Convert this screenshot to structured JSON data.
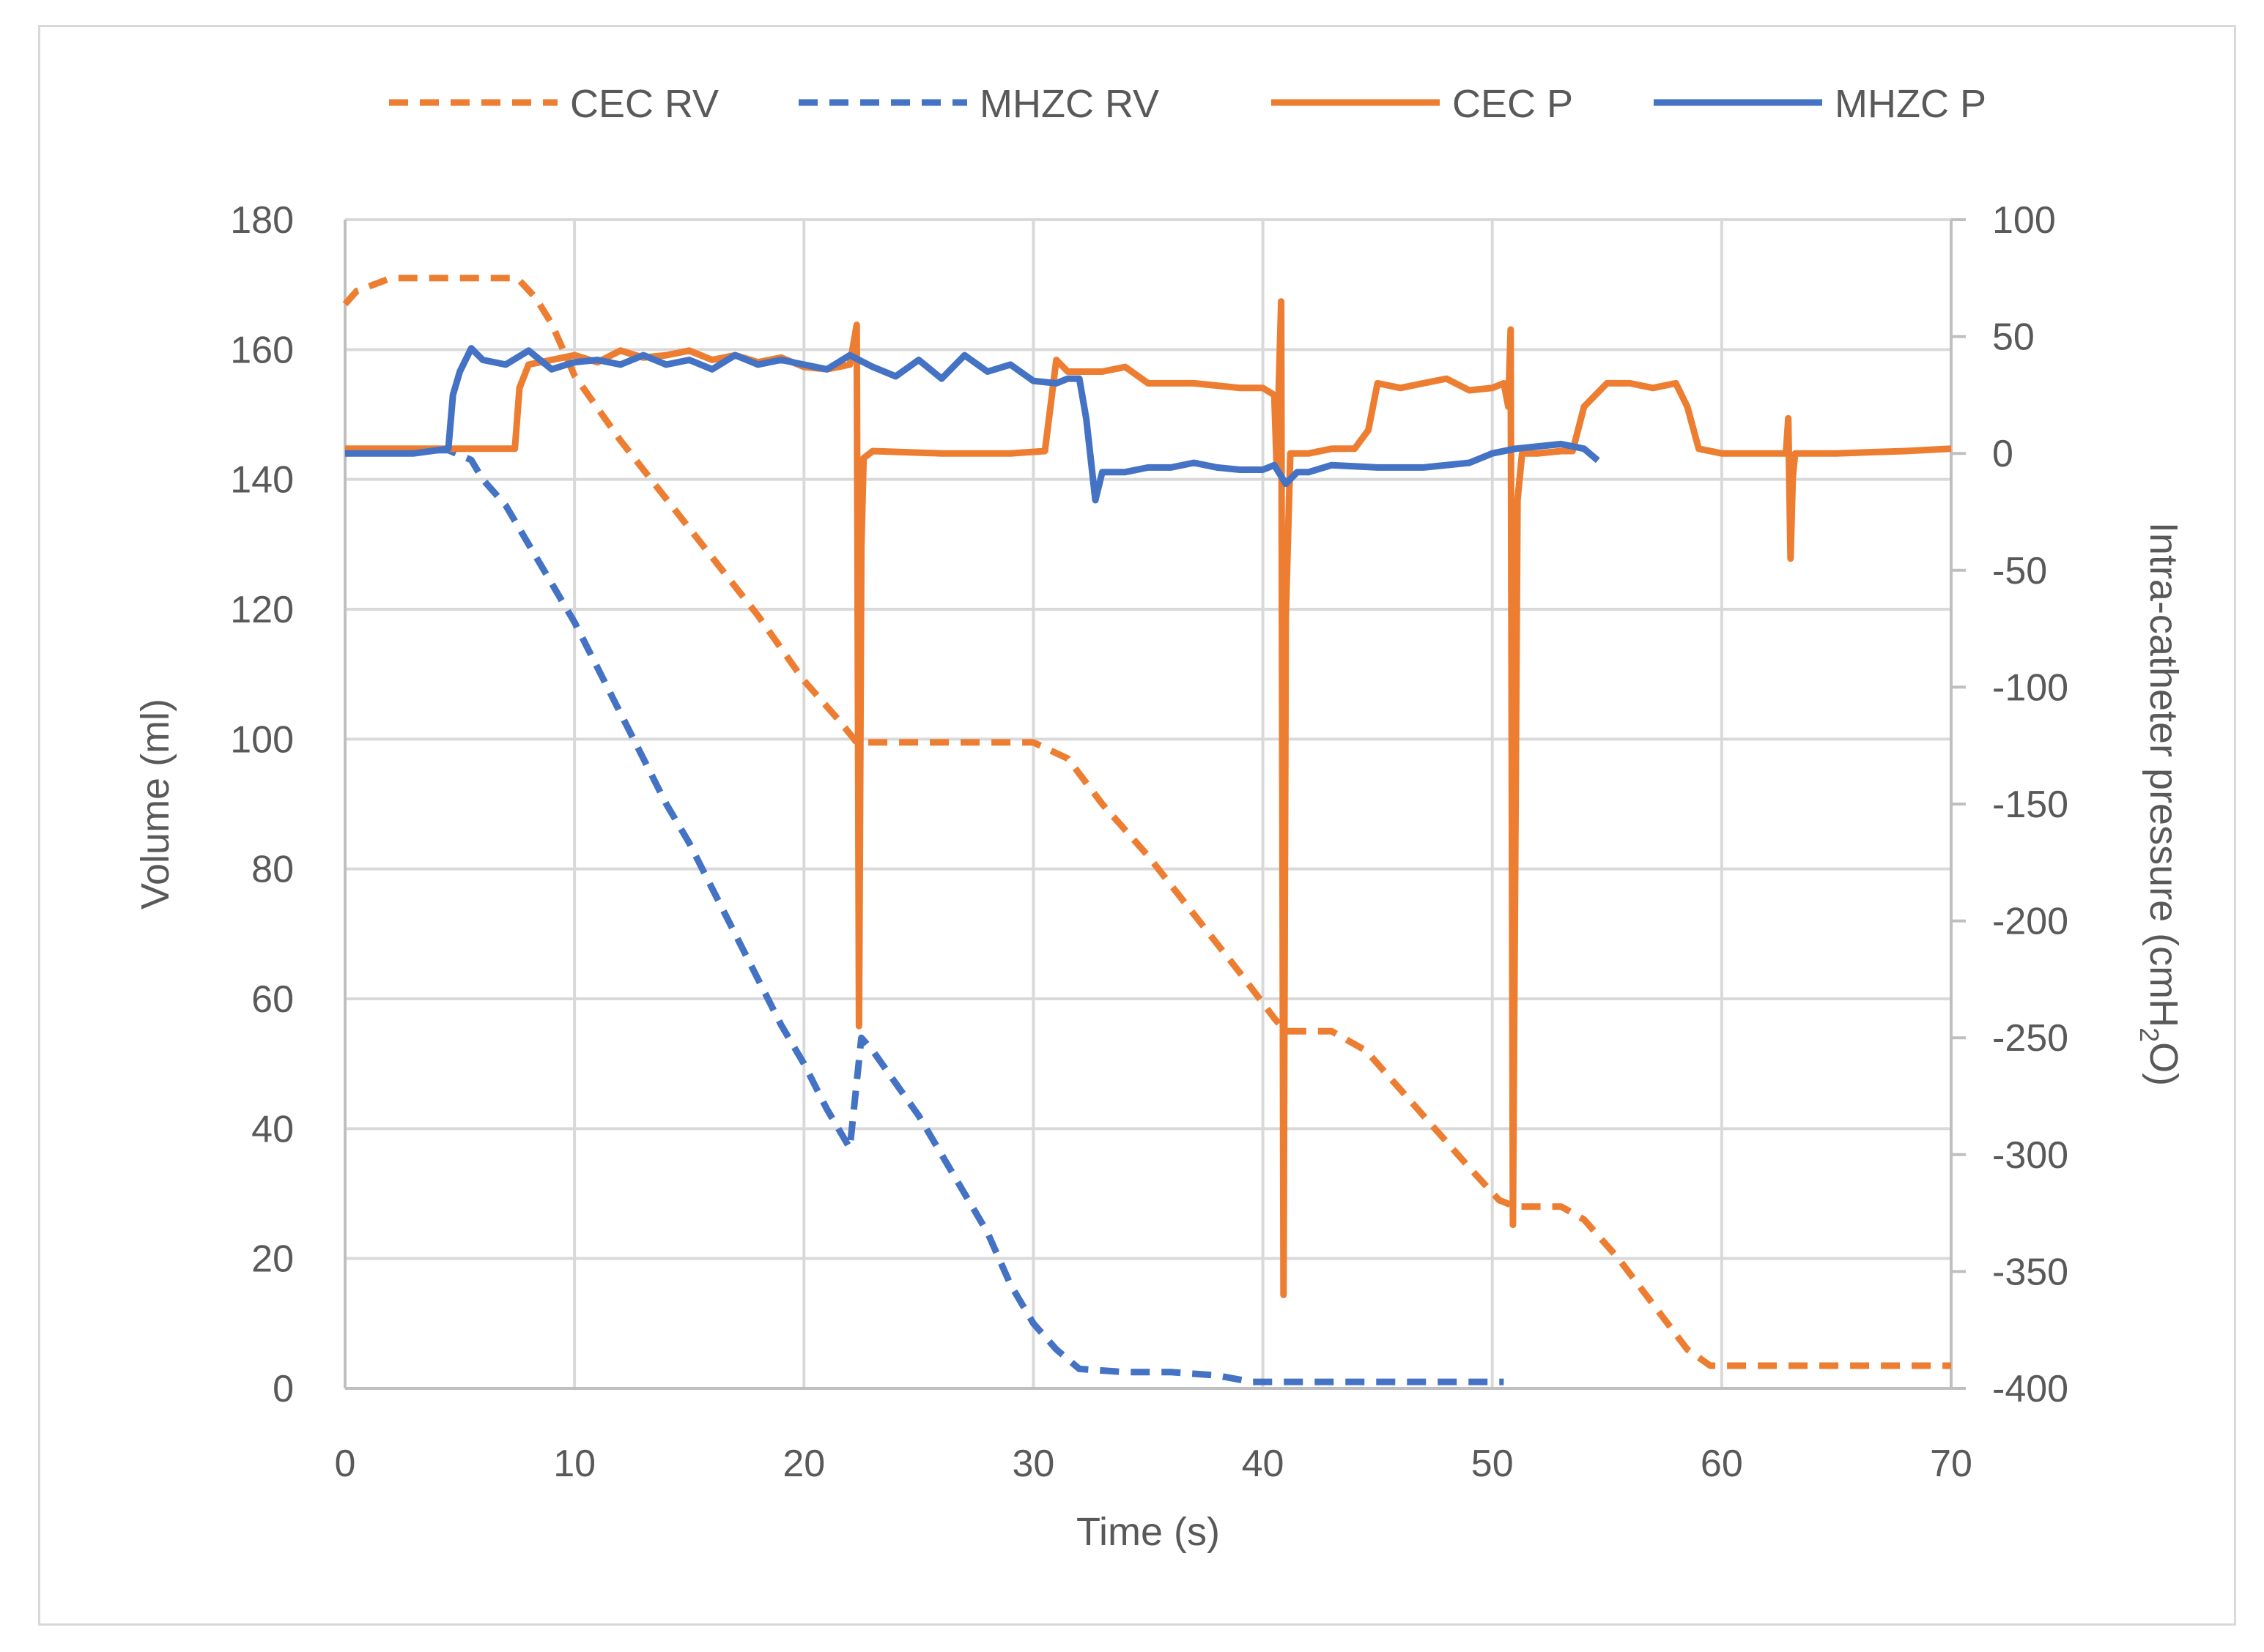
{
  "chart_data": {
    "type": "line",
    "title": "",
    "xlabel": "Time (s)",
    "ylabel": "Volume (ml)",
    "y2label_main": "Intra-catheter pressure (cmH",
    "y2label_sub": "2",
    "y2label_end": "O)",
    "xlim": [
      0,
      70
    ],
    "ylim": [
      0,
      180
    ],
    "y2lim": [
      -400,
      100
    ],
    "grid": true,
    "legend_position": "top",
    "xticks": [
      "0",
      "10",
      "20",
      "30",
      "40",
      "50",
      "60",
      "70"
    ],
    "yticks": [
      "0",
      "20",
      "40",
      "60",
      "80",
      "100",
      "120",
      "140",
      "160",
      "180"
    ],
    "y2ticks": [
      "-400",
      "-350",
      "-300",
      "-250",
      "-200",
      "-150",
      "-100",
      "-50",
      "0",
      "50",
      "100"
    ],
    "series": [
      {
        "name": "CEC RV",
        "axis": "left",
        "color": "#ED7D31",
        "style": "dashed",
        "points": [
          [
            0,
            167
          ],
          [
            0.5,
            169
          ],
          [
            2,
            171
          ],
          [
            4,
            171
          ],
          [
            7.5,
            171
          ],
          [
            8.3,
            168
          ],
          [
            9,
            164
          ],
          [
            10,
            156
          ],
          [
            12,
            146
          ],
          [
            14,
            137
          ],
          [
            16,
            128
          ],
          [
            18,
            119
          ],
          [
            20,
            109
          ],
          [
            21.5,
            103
          ],
          [
            22.3,
            99.5
          ],
          [
            25,
            99.5
          ],
          [
            30,
            99.5
          ],
          [
            31.5,
            97
          ],
          [
            33,
            90
          ],
          [
            35,
            82
          ],
          [
            37,
            73
          ],
          [
            39,
            64
          ],
          [
            40.5,
            57
          ],
          [
            41,
            55
          ],
          [
            43,
            55
          ],
          [
            44.5,
            52
          ],
          [
            46,
            46
          ],
          [
            47.5,
            40
          ],
          [
            49,
            34
          ],
          [
            50.3,
            29
          ],
          [
            51,
            28
          ],
          [
            53,
            28
          ],
          [
            54,
            26
          ],
          [
            55.5,
            20
          ],
          [
            57,
            13
          ],
          [
            58.5,
            6
          ],
          [
            59.5,
            3.5
          ],
          [
            65,
            3.5
          ],
          [
            70,
            3.5
          ]
        ]
      },
      {
        "name": "MHZC RV",
        "axis": "left",
        "color": "#4472C4",
        "style": "dashed",
        "points": [
          [
            0,
            144.5
          ],
          [
            4.5,
            144.5
          ],
          [
            5.5,
            143
          ],
          [
            6,
            140
          ],
          [
            7,
            136
          ],
          [
            8,
            130
          ],
          [
            9,
            124
          ],
          [
            10,
            118
          ],
          [
            11,
            111
          ],
          [
            12,
            104
          ],
          [
            13,
            97
          ],
          [
            14,
            90
          ],
          [
            15,
            84
          ],
          [
            16,
            77
          ],
          [
            17,
            70
          ],
          [
            18,
            63
          ],
          [
            19,
            56
          ],
          [
            20,
            50
          ],
          [
            21,
            43
          ],
          [
            22,
            37
          ],
          [
            22.5,
            54
          ],
          [
            23,
            52
          ],
          [
            24,
            47
          ],
          [
            25,
            42
          ],
          [
            26,
            36
          ],
          [
            27,
            30
          ],
          [
            28,
            24
          ],
          [
            29,
            16
          ],
          [
            30,
            10
          ],
          [
            31,
            6
          ],
          [
            32,
            3
          ],
          [
            34,
            2.5
          ],
          [
            36,
            2.5
          ],
          [
            38,
            2
          ],
          [
            39.5,
            1
          ],
          [
            41,
            1
          ],
          [
            45,
            1
          ],
          [
            50.5,
            1
          ]
        ]
      },
      {
        "name": "CEC P",
        "axis": "right",
        "color": "#ED7D31",
        "style": "solid",
        "points": [
          [
            0,
            2
          ],
          [
            4,
            2
          ],
          [
            7.4,
            2
          ],
          [
            7.6,
            28
          ],
          [
            8,
            38
          ],
          [
            9,
            40
          ],
          [
            10,
            42
          ],
          [
            11,
            39
          ],
          [
            12,
            44
          ],
          [
            13,
            41
          ],
          [
            14,
            42
          ],
          [
            15,
            44
          ],
          [
            16,
            40
          ],
          [
            17,
            42
          ],
          [
            18,
            39
          ],
          [
            19,
            41
          ],
          [
            20,
            37
          ],
          [
            21,
            36
          ],
          [
            22,
            38
          ],
          [
            22.3,
            55
          ],
          [
            22.4,
            -245
          ],
          [
            22.5,
            -40
          ],
          [
            22.6,
            -2
          ],
          [
            23,
            1
          ],
          [
            26,
            0
          ],
          [
            29,
            0
          ],
          [
            30.5,
            1
          ],
          [
            31,
            40
          ],
          [
            31.5,
            35
          ],
          [
            33,
            35
          ],
          [
            34,
            37
          ],
          [
            35,
            30
          ],
          [
            37,
            30
          ],
          [
            39,
            28
          ],
          [
            40,
            28
          ],
          [
            40.5,
            25
          ],
          [
            40.6,
            -5
          ],
          [
            40.8,
            65
          ],
          [
            40.9,
            -360
          ],
          [
            41,
            -70
          ],
          [
            41.2,
            0
          ],
          [
            42,
            0
          ],
          [
            43,
            2
          ],
          [
            44,
            2
          ],
          [
            44.6,
            10
          ],
          [
            45,
            30
          ],
          [
            46,
            28
          ],
          [
            47,
            30
          ],
          [
            48,
            32
          ],
          [
            49,
            27
          ],
          [
            50,
            28
          ],
          [
            50.5,
            30
          ],
          [
            50.7,
            20
          ],
          [
            50.8,
            53
          ],
          [
            50.9,
            -330
          ],
          [
            51.1,
            -20
          ],
          [
            51.3,
            0
          ],
          [
            52,
            0
          ],
          [
            53,
            1
          ],
          [
            53.5,
            1
          ],
          [
            54,
            20
          ],
          [
            55,
            30
          ],
          [
            56,
            30
          ],
          [
            57,
            28
          ],
          [
            58,
            30
          ],
          [
            58.5,
            20
          ],
          [
            59,
            2
          ],
          [
            60,
            0
          ],
          [
            62,
            0
          ],
          [
            62.8,
            0
          ],
          [
            62.9,
            15
          ],
          [
            63,
            -45
          ],
          [
            63.1,
            -10
          ],
          [
            63.2,
            0
          ],
          [
            65,
            0
          ],
          [
            68,
            1
          ],
          [
            70,
            2
          ]
        ]
      },
      {
        "name": "MHZC P",
        "axis": "right",
        "color": "#4472C4",
        "style": "solid",
        "points": [
          [
            0,
            0
          ],
          [
            3,
            0
          ],
          [
            4.5,
            2
          ],
          [
            4.7,
            25
          ],
          [
            5,
            35
          ],
          [
            5.5,
            45
          ],
          [
            6,
            40
          ],
          [
            7,
            38
          ],
          [
            8,
            44
          ],
          [
            9,
            36
          ],
          [
            10,
            39
          ],
          [
            11,
            40
          ],
          [
            12,
            38
          ],
          [
            13,
            42
          ],
          [
            14,
            38
          ],
          [
            15,
            40
          ],
          [
            16,
            36
          ],
          [
            17,
            42
          ],
          [
            18,
            38
          ],
          [
            19,
            40
          ],
          [
            20,
            38
          ],
          [
            21,
            36
          ],
          [
            22,
            42
          ],
          [
            23,
            37
          ],
          [
            24,
            33
          ],
          [
            25,
            40
          ],
          [
            26,
            32
          ],
          [
            27,
            42
          ],
          [
            28,
            35
          ],
          [
            29,
            38
          ],
          [
            30,
            31
          ],
          [
            31,
            30
          ],
          [
            31.5,
            32
          ],
          [
            32,
            32
          ],
          [
            32.3,
            15
          ],
          [
            32.7,
            -20
          ],
          [
            33,
            -8
          ],
          [
            34,
            -8
          ],
          [
            35,
            -6
          ],
          [
            36,
            -6
          ],
          [
            37,
            -4
          ],
          [
            38,
            -6
          ],
          [
            39,
            -7
          ],
          [
            40,
            -7
          ],
          [
            40.5,
            -5
          ],
          [
            41,
            -13
          ],
          [
            41.5,
            -8
          ],
          [
            42,
            -8
          ],
          [
            43,
            -5
          ],
          [
            45,
            -6
          ],
          [
            47,
            -6
          ],
          [
            49,
            -4
          ],
          [
            50,
            0
          ],
          [
            51,
            2
          ],
          [
            52,
            3
          ],
          [
            53,
            4
          ],
          [
            54,
            2
          ],
          [
            54.6,
            -3
          ]
        ]
      }
    ]
  }
}
